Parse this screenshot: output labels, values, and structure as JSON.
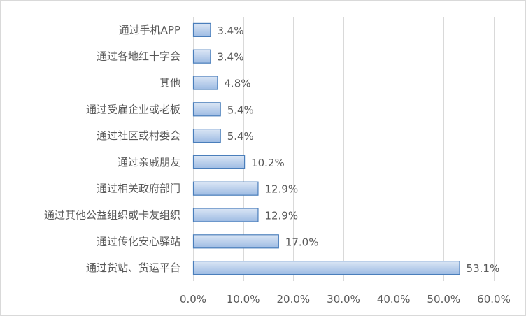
{
  "chart_data": {
    "type": "bar",
    "orientation": "horizontal",
    "title": "",
    "xlabel": "",
    "ylabel": "",
    "categories": [
      "通过手机APP",
      "通过各地红十字会",
      "其他",
      "通过受雇企业或老板",
      "通过社区或村委会",
      "通过亲戚朋友",
      "通过相关政府部门",
      "通过其他公益组织或卡友组织",
      "通过传化安心驿站",
      "通过货站、货运平台"
    ],
    "values": [
      3.4,
      3.4,
      4.8,
      5.4,
      5.4,
      10.2,
      12.9,
      12.9,
      17.0,
      53.1
    ],
    "value_labels": [
      "3.4%",
      "3.4%",
      "4.8%",
      "5.4%",
      "5.4%",
      "10.2%",
      "12.9%",
      "12.9%",
      "17.0%",
      "53.1%"
    ],
    "xlim": [
      0,
      60
    ],
    "x_ticks": [
      0,
      10,
      20,
      30,
      40,
      50,
      60
    ],
    "x_tick_labels": [
      "0.0%",
      "10.0%",
      "20.0%",
      "30.0%",
      "40.0%",
      "50.0%",
      "60.0%"
    ],
    "grid": "vertical",
    "legend": "none",
    "colors": {
      "bar_fill_top": "#dbe6f5",
      "bar_fill_bottom": "#9dbbe3",
      "bar_stroke": "#4a7ebb",
      "grid": "#d9d9d9",
      "text": "#595959"
    }
  }
}
